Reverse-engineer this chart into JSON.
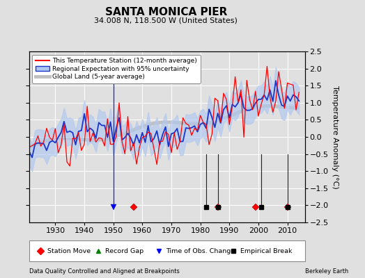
{
  "title": "SANTA MONICA PIER",
  "subtitle": "34.008 N, 118.500 W (United States)",
  "ylabel": "Temperature Anomaly (°C)",
  "footer_left": "Data Quality Controlled and Aligned at Breakpoints",
  "footer_right": "Berkeley Earth",
  "xlim": [
    1921,
    2016
  ],
  "ylim": [
    -2.5,
    2.5
  ],
  "yticks": [
    -2,
    -1.5,
    -1,
    -0.5,
    0,
    0.5,
    1,
    1.5,
    2
  ],
  "yticks_right": [
    -2.5,
    -2,
    -1.5,
    -1,
    -0.5,
    0,
    0.5,
    1,
    1.5,
    2,
    2.5
  ],
  "xticks": [
    1930,
    1940,
    1950,
    1960,
    1970,
    1980,
    1990,
    2000,
    2010
  ],
  "bg_color": "#e0e0e0",
  "plot_bg_color": "#e0e0e0",
  "station_move_years": [
    1957,
    1986,
    1999,
    2010
  ],
  "record_gap_years": [],
  "time_obs_years": [
    1950
  ],
  "empirical_break_years": [
    1982,
    1986,
    2001,
    2010
  ],
  "seed": 42
}
